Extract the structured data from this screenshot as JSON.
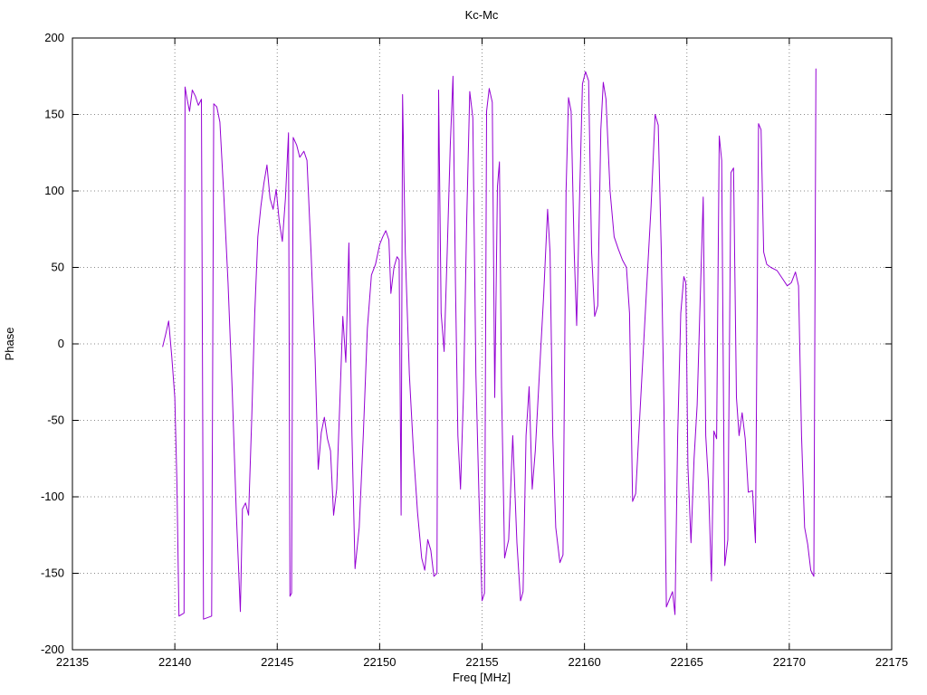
{
  "chart_data": {
    "type": "line",
    "title": "Kc-Mc",
    "xlabel": "Freq [MHz]",
    "ylabel": "Phase",
    "xlim": [
      22135,
      22175
    ],
    "ylim": [
      -200,
      200
    ],
    "xticks": [
      22135,
      22140,
      22145,
      22150,
      22155,
      22160,
      22165,
      22170,
      22175
    ],
    "yticks": [
      -200,
      -150,
      -100,
      -50,
      0,
      50,
      100,
      150,
      200
    ],
    "grid": true,
    "legend_position": "none",
    "line_color": "#9400d3",
    "points": [
      [
        22139.4,
        -2
      ],
      [
        22139.55,
        6
      ],
      [
        22139.7,
        15
      ],
      [
        22139.85,
        -8
      ],
      [
        22140.0,
        -35
      ],
      [
        22140.1,
        -90
      ],
      [
        22140.2,
        -178
      ],
      [
        22140.45,
        -176
      ],
      [
        22140.5,
        168
      ],
      [
        22140.6,
        160
      ],
      [
        22140.72,
        152
      ],
      [
        22140.85,
        166
      ],
      [
        22141.0,
        162
      ],
      [
        22141.15,
        156
      ],
      [
        22141.3,
        160
      ],
      [
        22141.4,
        -180
      ],
      [
        22141.8,
        -178
      ],
      [
        22141.9,
        157
      ],
      [
        22142.05,
        155
      ],
      [
        22142.2,
        145
      ],
      [
        22142.4,
        95
      ],
      [
        22142.6,
        40
      ],
      [
        22142.8,
        -30
      ],
      [
        22143.0,
        -110
      ],
      [
        22143.2,
        -175
      ],
      [
        22143.3,
        -108
      ],
      [
        22143.45,
        -104
      ],
      [
        22143.6,
        -112
      ],
      [
        22143.75,
        -50
      ],
      [
        22143.9,
        20
      ],
      [
        22144.05,
        70
      ],
      [
        22144.2,
        90
      ],
      [
        22144.35,
        105
      ],
      [
        22144.5,
        117
      ],
      [
        22144.65,
        95
      ],
      [
        22144.8,
        88
      ],
      [
        22144.95,
        101
      ],
      [
        22145.1,
        80
      ],
      [
        22145.25,
        67
      ],
      [
        22145.4,
        95
      ],
      [
        22145.55,
        138
      ],
      [
        22145.62,
        -165
      ],
      [
        22145.7,
        -163
      ],
      [
        22145.78,
        135
      ],
      [
        22145.95,
        130
      ],
      [
        22146.1,
        122
      ],
      [
        22146.3,
        126
      ],
      [
        22146.45,
        120
      ],
      [
        22146.65,
        60
      ],
      [
        22146.85,
        -10
      ],
      [
        22147.0,
        -82
      ],
      [
        22147.15,
        -58
      ],
      [
        22147.3,
        -48
      ],
      [
        22147.45,
        -62
      ],
      [
        22147.6,
        -70
      ],
      [
        22147.75,
        -112
      ],
      [
        22147.9,
        -95
      ],
      [
        22148.05,
        -40
      ],
      [
        22148.2,
        18
      ],
      [
        22148.35,
        -12
      ],
      [
        22148.5,
        66
      ],
      [
        22148.65,
        -60
      ],
      [
        22148.8,
        -147
      ],
      [
        22149.0,
        -120
      ],
      [
        22149.2,
        -60
      ],
      [
        22149.4,
        10
      ],
      [
        22149.6,
        45
      ],
      [
        22149.8,
        52
      ],
      [
        22150.0,
        65
      ],
      [
        22150.15,
        70
      ],
      [
        22150.3,
        74
      ],
      [
        22150.45,
        68
      ],
      [
        22150.55,
        33
      ],
      [
        22150.7,
        50
      ],
      [
        22150.85,
        57
      ],
      [
        22150.95,
        55
      ],
      [
        22151.05,
        -112
      ],
      [
        22151.12,
        163
      ],
      [
        22151.25,
        60
      ],
      [
        22151.45,
        -20
      ],
      [
        22151.65,
        -70
      ],
      [
        22151.85,
        -110
      ],
      [
        22152.05,
        -140
      ],
      [
        22152.2,
        -148
      ],
      [
        22152.35,
        -128
      ],
      [
        22152.5,
        -135
      ],
      [
        22152.65,
        -152
      ],
      [
        22152.8,
        -150
      ],
      [
        22152.88,
        166
      ],
      [
        22153.0,
        20
      ],
      [
        22153.15,
        -5
      ],
      [
        22153.3,
        60
      ],
      [
        22153.45,
        130
      ],
      [
        22153.58,
        175
      ],
      [
        22153.7,
        40
      ],
      [
        22153.82,
        -60
      ],
      [
        22153.95,
        -95
      ],
      [
        22154.1,
        -30
      ],
      [
        22154.25,
        80
      ],
      [
        22154.4,
        165
      ],
      [
        22154.55,
        148
      ],
      [
        22154.7,
        -20
      ],
      [
        22154.85,
        -100
      ],
      [
        22155.0,
        -168
      ],
      [
        22155.12,
        -163
      ],
      [
        22155.22,
        152
      ],
      [
        22155.35,
        167
      ],
      [
        22155.5,
        158
      ],
      [
        22155.62,
        -35
      ],
      [
        22155.75,
        103
      ],
      [
        22155.85,
        119
      ],
      [
        22155.95,
        -28
      ],
      [
        22156.1,
        -140
      ],
      [
        22156.3,
        -128
      ],
      [
        22156.5,
        -60
      ],
      [
        22156.7,
        -130
      ],
      [
        22156.88,
        -168
      ],
      [
        22157.0,
        -162
      ],
      [
        22157.15,
        -60
      ],
      [
        22157.3,
        -28
      ],
      [
        22157.45,
        -95
      ],
      [
        22157.6,
        -70
      ],
      [
        22157.8,
        -20
      ],
      [
        22158.0,
        30
      ],
      [
        22158.2,
        88
      ],
      [
        22158.32,
        60
      ],
      [
        22158.45,
        -60
      ],
      [
        22158.6,
        -120
      ],
      [
        22158.8,
        -143
      ],
      [
        22158.95,
        -138
      ],
      [
        22159.1,
        100
      ],
      [
        22159.22,
        161
      ],
      [
        22159.35,
        152
      ],
      [
        22159.5,
        60
      ],
      [
        22159.62,
        12
      ],
      [
        22159.75,
        90
      ],
      [
        22159.9,
        170
      ],
      [
        22160.05,
        178
      ],
      [
        22160.2,
        172
      ],
      [
        22160.35,
        60
      ],
      [
        22160.5,
        18
      ],
      [
        22160.65,
        25
      ],
      [
        22160.8,
        140
      ],
      [
        22160.92,
        171
      ],
      [
        22161.05,
        160
      ],
      [
        22161.25,
        100
      ],
      [
        22161.45,
        70
      ],
      [
        22161.65,
        62
      ],
      [
        22161.85,
        55
      ],
      [
        22162.05,
        50
      ],
      [
        22162.2,
        20
      ],
      [
        22162.35,
        -103
      ],
      [
        22162.5,
        -98
      ],
      [
        22162.65,
        -60
      ],
      [
        22162.85,
        -10
      ],
      [
        22163.05,
        40
      ],
      [
        22163.25,
        90
      ],
      [
        22163.45,
        150
      ],
      [
        22163.6,
        143
      ],
      [
        22163.75,
        60
      ],
      [
        22163.88,
        -40
      ],
      [
        22164.0,
        -172
      ],
      [
        22164.15,
        -167
      ],
      [
        22164.3,
        -162
      ],
      [
        22164.42,
        -177
      ],
      [
        22164.55,
        -60
      ],
      [
        22164.7,
        20
      ],
      [
        22164.85,
        44
      ],
      [
        22164.95,
        40
      ],
      [
        22165.05,
        -80
      ],
      [
        22165.2,
        -130
      ],
      [
        22165.35,
        -75
      ],
      [
        22165.5,
        -40
      ],
      [
        22165.65,
        30
      ],
      [
        22165.8,
        96
      ],
      [
        22165.92,
        -60
      ],
      [
        22166.05,
        -90
      ],
      [
        22166.2,
        -155
      ],
      [
        22166.32,
        -57
      ],
      [
        22166.45,
        -62
      ],
      [
        22166.58,
        136
      ],
      [
        22166.7,
        120
      ],
      [
        22166.85,
        -145
      ],
      [
        22167.0,
        -128
      ],
      [
        22167.15,
        112
      ],
      [
        22167.28,
        115
      ],
      [
        22167.42,
        -35
      ],
      [
        22167.55,
        -60
      ],
      [
        22167.7,
        -45
      ],
      [
        22167.85,
        -62
      ],
      [
        22168.0,
        -97
      ],
      [
        22168.2,
        -96
      ],
      [
        22168.35,
        -130
      ],
      [
        22168.5,
        144
      ],
      [
        22168.62,
        140
      ],
      [
        22168.75,
        60
      ],
      [
        22168.9,
        52
      ],
      [
        22169.1,
        50
      ],
      [
        22169.4,
        48
      ],
      [
        22169.7,
        42
      ],
      [
        22169.9,
        38
      ],
      [
        22170.1,
        40
      ],
      [
        22170.3,
        47
      ],
      [
        22170.45,
        38
      ],
      [
        22170.6,
        -60
      ],
      [
        22170.75,
        -120
      ],
      [
        22170.9,
        -131
      ],
      [
        22171.05,
        -148
      ],
      [
        22171.2,
        -152
      ],
      [
        22171.3,
        180
      ]
    ]
  }
}
